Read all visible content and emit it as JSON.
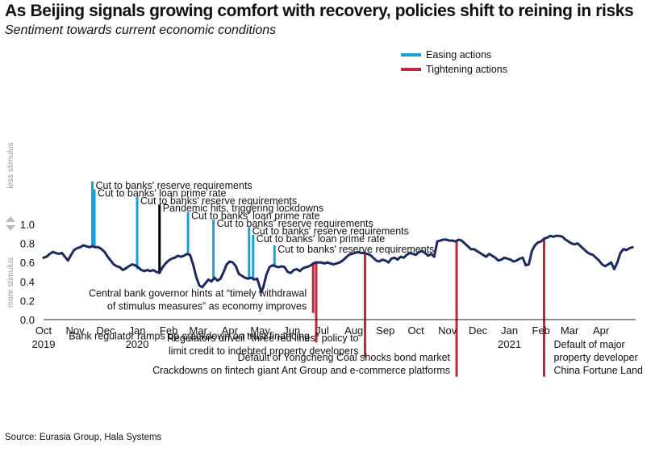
{
  "title": "As Beijing signals growing comfort with recovery, policies shift to reining in risks",
  "subtitle": "Sentiment towards current economic conditions",
  "source": "Source: Eurasia Group, Hala Systems",
  "colors": {
    "line": "#1c2a5e",
    "easing": "#1aa0d8",
    "tightening": "#c0273b",
    "pandemic": "#000000"
  },
  "chart_data": {
    "type": "line",
    "title": "As Beijing signals growing comfort with recovery, policies shift to reining in risks",
    "subtitle": "Sentiment towards current economic conditions",
    "x_range": [
      "2019-10-01",
      "2021-05-05"
    ],
    "ylim": [
      0,
      1.05
    ],
    "yticks": [
      "0.0",
      "0.2",
      "0.4",
      "0.6",
      "0.8",
      "1.0"
    ],
    "grid": false,
    "legend_position": "top-right",
    "y_side_labels": {
      "top": "less stimulus",
      "bottom": "more stimulus"
    },
    "x_ticks": [
      {
        "date": "2019-10-01",
        "label": "Oct",
        "year": "2019"
      },
      {
        "date": "2019-11-01",
        "label": "Nov"
      },
      {
        "date": "2019-12-01",
        "label": "Dec"
      },
      {
        "date": "2020-01-01",
        "label": "Jan",
        "year": "2020"
      },
      {
        "date": "2020-02-01",
        "label": "Feb"
      },
      {
        "date": "2020-03-01",
        "label": "Mar"
      },
      {
        "date": "2020-04-01",
        "label": "Apr"
      },
      {
        "date": "2020-05-01",
        "label": "May"
      },
      {
        "date": "2020-06-01",
        "label": "Jun"
      },
      {
        "date": "2020-07-01",
        "label": "Jul"
      },
      {
        "date": "2020-08-01",
        "label": "Aug"
      },
      {
        "date": "2020-09-01",
        "label": "Sep"
      },
      {
        "date": "2020-10-01",
        "label": "Oct"
      },
      {
        "date": "2020-11-01",
        "label": "Nov"
      },
      {
        "date": "2020-12-01",
        "label": "Dec"
      },
      {
        "date": "2021-01-01",
        "label": "Jan",
        "year": "2021"
      },
      {
        "date": "2021-02-01",
        "label": "Feb"
      },
      {
        "date": "2021-03-01",
        "label": "Mar"
      },
      {
        "date": "2021-04-01",
        "label": "Apr"
      }
    ],
    "legend": [
      {
        "label": "Easing actions",
        "kind": "easing"
      },
      {
        "label": "Tightening actions",
        "kind": "tightening"
      }
    ],
    "series": [
      {
        "points": [
          [
            "2019-10-01",
            0.65
          ],
          [
            "2019-10-04",
            0.66
          ],
          [
            "2019-10-07",
            0.69
          ],
          [
            "2019-10-10",
            0.71
          ],
          [
            "2019-10-13",
            0.7
          ],
          [
            "2019-10-16",
            0.69
          ],
          [
            "2019-10-19",
            0.7
          ],
          [
            "2019-10-22",
            0.66
          ],
          [
            "2019-10-25",
            0.62
          ],
          [
            "2019-10-28",
            0.68
          ],
          [
            "2019-10-31",
            0.73
          ],
          [
            "2019-11-03",
            0.75
          ],
          [
            "2019-11-06",
            0.76
          ],
          [
            "2019-11-09",
            0.78
          ],
          [
            "2019-11-12",
            0.77
          ],
          [
            "2019-11-15",
            0.76
          ],
          [
            "2019-11-18",
            0.77
          ],
          [
            "2019-11-21",
            0.76
          ],
          [
            "2019-11-24",
            0.76
          ],
          [
            "2019-11-27",
            0.74
          ],
          [
            "2019-11-30",
            0.71
          ],
          [
            "2019-12-03",
            0.66
          ],
          [
            "2019-12-06",
            0.62
          ],
          [
            "2019-12-09",
            0.58
          ],
          [
            "2019-12-12",
            0.56
          ],
          [
            "2019-12-15",
            0.55
          ],
          [
            "2019-12-18",
            0.52
          ],
          [
            "2019-12-21",
            0.54
          ],
          [
            "2019-12-24",
            0.56
          ],
          [
            "2019-12-27",
            0.58
          ],
          [
            "2019-12-30",
            0.57
          ],
          [
            "2020-01-02",
            0.55
          ],
          [
            "2020-01-05",
            0.52
          ],
          [
            "2020-01-08",
            0.51
          ],
          [
            "2020-01-11",
            0.52
          ],
          [
            "2020-01-14",
            0.51
          ],
          [
            "2020-01-17",
            0.52
          ],
          [
            "2020-01-20",
            0.5
          ],
          [
            "2020-01-23",
            0.49
          ],
          [
            "2020-01-26",
            0.55
          ],
          [
            "2020-01-29",
            0.59
          ],
          [
            "2020-02-01",
            0.62
          ],
          [
            "2020-02-04",
            0.64
          ],
          [
            "2020-02-07",
            0.65
          ],
          [
            "2020-02-10",
            0.67
          ],
          [
            "2020-02-13",
            0.66
          ],
          [
            "2020-02-16",
            0.67
          ],
          [
            "2020-02-19",
            0.69
          ],
          [
            "2020-02-22",
            0.68
          ],
          [
            "2020-02-25",
            0.58
          ],
          [
            "2020-02-28",
            0.45
          ],
          [
            "2020-03-02",
            0.36
          ],
          [
            "2020-03-05",
            0.34
          ],
          [
            "2020-03-08",
            0.38
          ],
          [
            "2020-03-11",
            0.42
          ],
          [
            "2020-03-14",
            0.4
          ],
          [
            "2020-03-17",
            0.44
          ],
          [
            "2020-03-20",
            0.41
          ],
          [
            "2020-03-23",
            0.43
          ],
          [
            "2020-03-26",
            0.5
          ],
          [
            "2020-03-29",
            0.58
          ],
          [
            "2020-04-01",
            0.61
          ],
          [
            "2020-04-04",
            0.6
          ],
          [
            "2020-04-07",
            0.56
          ],
          [
            "2020-04-10",
            0.48
          ],
          [
            "2020-04-13",
            0.46
          ],
          [
            "2020-04-16",
            0.44
          ],
          [
            "2020-04-19",
            0.43
          ],
          [
            "2020-04-22",
            0.44
          ],
          [
            "2020-04-25",
            0.42
          ],
          [
            "2020-04-28",
            0.43
          ],
          [
            "2020-04-30",
            0.36
          ],
          [
            "2020-05-02",
            0.29
          ],
          [
            "2020-05-04",
            0.34
          ],
          [
            "2020-05-07",
            0.47
          ],
          [
            "2020-05-10",
            0.55
          ],
          [
            "2020-05-13",
            0.57
          ],
          [
            "2020-05-16",
            0.56
          ],
          [
            "2020-05-19",
            0.55
          ],
          [
            "2020-05-22",
            0.56
          ],
          [
            "2020-05-25",
            0.55
          ],
          [
            "2020-05-28",
            0.5
          ],
          [
            "2020-05-31",
            0.49
          ],
          [
            "2020-06-03",
            0.52
          ],
          [
            "2020-06-06",
            0.53
          ],
          [
            "2020-06-09",
            0.51
          ],
          [
            "2020-06-12",
            0.54
          ],
          [
            "2020-06-15",
            0.55
          ],
          [
            "2020-06-18",
            0.56
          ],
          [
            "2020-06-21",
            0.58
          ],
          [
            "2020-06-24",
            0.6
          ],
          [
            "2020-06-27",
            0.6
          ],
          [
            "2020-06-30",
            0.6
          ],
          [
            "2020-07-03",
            0.59
          ],
          [
            "2020-07-06",
            0.6
          ],
          [
            "2020-07-09",
            0.59
          ],
          [
            "2020-07-12",
            0.58
          ],
          [
            "2020-07-15",
            0.59
          ],
          [
            "2020-07-18",
            0.6
          ],
          [
            "2020-07-21",
            0.62
          ],
          [
            "2020-07-24",
            0.65
          ],
          [
            "2020-07-27",
            0.68
          ],
          [
            "2020-07-30",
            0.69
          ],
          [
            "2020-08-02",
            0.7
          ],
          [
            "2020-08-05",
            0.71
          ],
          [
            "2020-08-08",
            0.7
          ],
          [
            "2020-08-11",
            0.7
          ],
          [
            "2020-08-14",
            0.69
          ],
          [
            "2020-08-17",
            0.68
          ],
          [
            "2020-08-20",
            0.65
          ],
          [
            "2020-08-23",
            0.62
          ],
          [
            "2020-08-26",
            0.61
          ],
          [
            "2020-08-29",
            0.63
          ],
          [
            "2020-09-01",
            0.62
          ],
          [
            "2020-09-04",
            0.6
          ],
          [
            "2020-09-07",
            0.64
          ],
          [
            "2020-09-10",
            0.65
          ],
          [
            "2020-09-13",
            0.63
          ],
          [
            "2020-09-16",
            0.66
          ],
          [
            "2020-09-19",
            0.65
          ],
          [
            "2020-09-22",
            0.68
          ],
          [
            "2020-09-25",
            0.7
          ],
          [
            "2020-09-28",
            0.69
          ],
          [
            "2020-10-01",
            0.68
          ],
          [
            "2020-10-04",
            0.71
          ],
          [
            "2020-10-07",
            0.72
          ],
          [
            "2020-10-10",
            0.7
          ],
          [
            "2020-10-13",
            0.67
          ],
          [
            "2020-10-16",
            0.69
          ],
          [
            "2020-10-19",
            0.66
          ],
          [
            "2020-10-22",
            0.82
          ],
          [
            "2020-10-25",
            0.83
          ],
          [
            "2020-10-28",
            0.84
          ],
          [
            "2020-10-31",
            0.84
          ],
          [
            "2020-11-03",
            0.83
          ],
          [
            "2020-11-06",
            0.83
          ],
          [
            "2020-11-09",
            0.82
          ],
          [
            "2020-11-12",
            0.84
          ],
          [
            "2020-11-15",
            0.83
          ],
          [
            "2020-11-18",
            0.8
          ],
          [
            "2020-11-21",
            0.77
          ],
          [
            "2020-11-24",
            0.74
          ],
          [
            "2020-11-27",
            0.74
          ],
          [
            "2020-11-30",
            0.72
          ],
          [
            "2020-12-03",
            0.7
          ],
          [
            "2020-12-06",
            0.68
          ],
          [
            "2020-12-09",
            0.66
          ],
          [
            "2020-12-12",
            0.69
          ],
          [
            "2020-12-15",
            0.67
          ],
          [
            "2020-12-18",
            0.65
          ],
          [
            "2020-12-21",
            0.62
          ],
          [
            "2020-12-24",
            0.63
          ],
          [
            "2020-12-27",
            0.65
          ],
          [
            "2020-12-30",
            0.64
          ],
          [
            "2021-01-02",
            0.63
          ],
          [
            "2021-01-05",
            0.61
          ],
          [
            "2021-01-08",
            0.62
          ],
          [
            "2021-01-11",
            0.64
          ],
          [
            "2021-01-14",
            0.65
          ],
          [
            "2021-01-17",
            0.57
          ],
          [
            "2021-01-20",
            0.58
          ],
          [
            "2021-01-23",
            0.72
          ],
          [
            "2021-01-26",
            0.78
          ],
          [
            "2021-01-29",
            0.81
          ],
          [
            "2021-02-01",
            0.82
          ],
          [
            "2021-02-04",
            0.85
          ],
          [
            "2021-02-07",
            0.86
          ],
          [
            "2021-02-10",
            0.88
          ],
          [
            "2021-02-13",
            0.87
          ],
          [
            "2021-02-16",
            0.88
          ],
          [
            "2021-02-19",
            0.88
          ],
          [
            "2021-02-22",
            0.87
          ],
          [
            "2021-02-25",
            0.84
          ],
          [
            "2021-02-28",
            0.82
          ],
          [
            "2021-03-03",
            0.8
          ],
          [
            "2021-03-06",
            0.79
          ],
          [
            "2021-03-09",
            0.8
          ],
          [
            "2021-03-12",
            0.77
          ],
          [
            "2021-03-15",
            0.74
          ],
          [
            "2021-03-18",
            0.71
          ],
          [
            "2021-03-21",
            0.69
          ],
          [
            "2021-03-24",
            0.68
          ],
          [
            "2021-03-27",
            0.65
          ],
          [
            "2021-03-30",
            0.62
          ],
          [
            "2021-04-02",
            0.58
          ],
          [
            "2021-04-05",
            0.56
          ],
          [
            "2021-04-08",
            0.58
          ],
          [
            "2021-04-11",
            0.6
          ],
          [
            "2021-04-14",
            0.53
          ],
          [
            "2021-04-17",
            0.6
          ],
          [
            "2021-04-20",
            0.7
          ],
          [
            "2021-04-23",
            0.74
          ],
          [
            "2021-04-26",
            0.73
          ],
          [
            "2021-04-29",
            0.75
          ],
          [
            "2021-05-02",
            0.76
          ]
        ]
      }
    ],
    "annotations": [
      {
        "kind": "easing",
        "date": "2019-11-18",
        "y_from": 0.76,
        "y_to": 1.45,
        "label": "Cut to banks' reserve requirements"
      },
      {
        "kind": "easing",
        "date": "2019-11-20",
        "y_from": 0.76,
        "y_to": 1.37,
        "label": "Cut to banks' loan prime rate"
      },
      {
        "kind": "easing",
        "date": "2020-01-01",
        "y_from": 0.53,
        "y_to": 1.29,
        "label": "Cut to banks' reserve requirements"
      },
      {
        "kind": "pandemic",
        "date": "2020-01-23",
        "y_from": 0.49,
        "y_to": 1.21,
        "label": "Pandemic hits, triggering lockdowns"
      },
      {
        "kind": "easing",
        "date": "2020-02-20",
        "y_from": 0.68,
        "y_to": 1.13,
        "label": "Cut to banks' loan prime rate"
      },
      {
        "kind": "easing",
        "date": "2020-03-16",
        "y_from": 0.44,
        "y_to": 1.05,
        "label": "Cut to banks' reserve requirements"
      },
      {
        "kind": "easing",
        "date": "2020-04-20",
        "y_from": 0.43,
        "y_to": 0.97,
        "label": "Cut to banks' reserve requirements"
      },
      {
        "kind": "easing",
        "date": "2020-04-24",
        "y_from": 0.42,
        "y_to": 0.89,
        "label": "Cut to banks' loan prime rate"
      },
      {
        "kind": "easing",
        "date": "2020-05-15",
        "y_from": 0.56,
        "y_to": 0.78,
        "label": "Cut to banks' reserve requirements"
      },
      {
        "kind": "tightening",
        "date": "2020-06-22",
        "y_from": 0.6,
        "y_to": 0.07,
        "label_lines": [
          "Central bank governor hints at “timely withdrawal",
          "of stimulus measures” as economy improves"
        ]
      },
      {
        "kind": "tightening",
        "date": "2020-06-25",
        "y_from": 0.6,
        "y_to": -0.24,
        "label_lines": [
          "Bank regulator ramps up crackdown on trust financing"
        ]
      },
      {
        "kind": "tightening",
        "date": "2020-08-12",
        "y_from": 0.7,
        "y_to": -0.4,
        "label_lines": [
          "Regulators unveil \"three red lines\" policy to",
          "limit credit to indebted property developers"
        ]
      },
      {
        "kind": "tightening",
        "date": "2020-11-10",
        "y_from": 0.83,
        "y_to": -0.6,
        "label_lines": [
          "Default of Yongcheng Coal shocks bond market",
          "Crackdowns on fintech giant Ant Group and e-commerce platforms"
        ]
      },
      {
        "kind": "tightening",
        "date": "2021-02-04",
        "y_from": 0.85,
        "y_to": -0.6,
        "label_lines": [
          "Default of major",
          "property developer",
          "China Fortune Land"
        ]
      }
    ]
  }
}
